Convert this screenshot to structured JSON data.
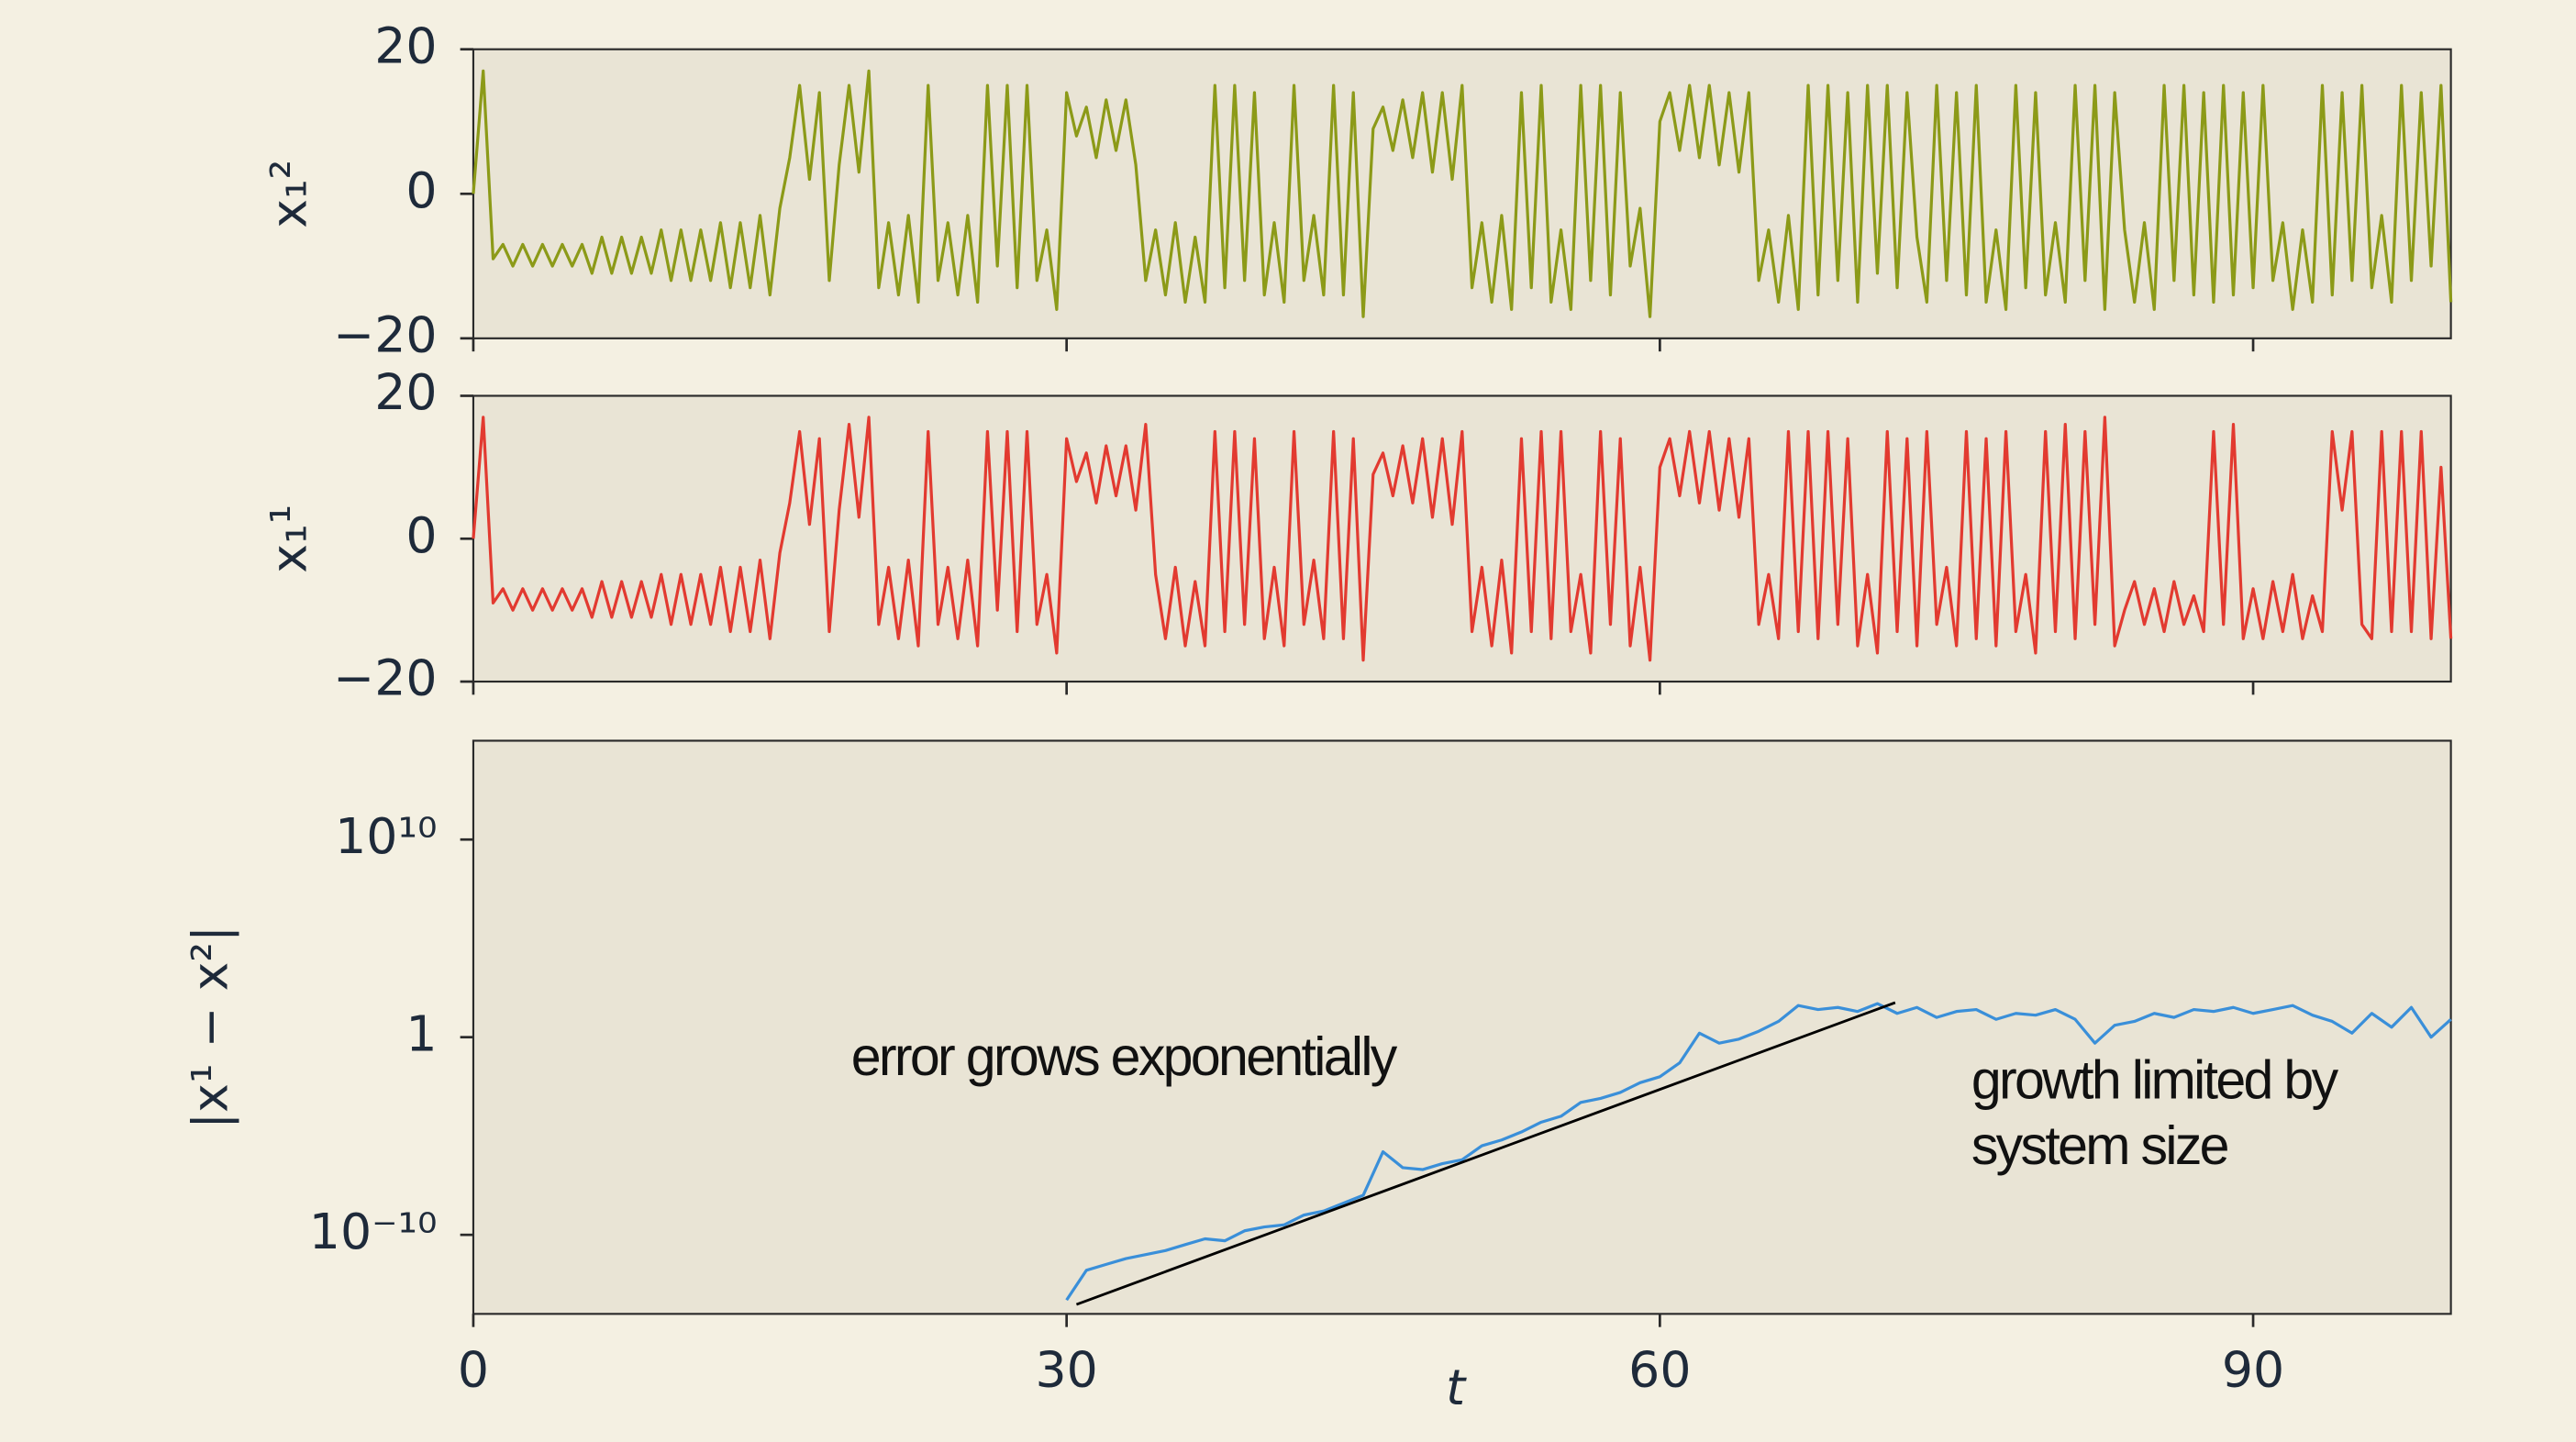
{
  "chart_data": [
    {
      "type": "line",
      "ylabel": "x₁²",
      "xlim": [
        0,
        100
      ],
      "xticks": [
        0,
        30,
        60,
        90
      ],
      "xticklabels": false,
      "ylim": [
        -20,
        20
      ],
      "yticks": [
        {
          "value": -20,
          "label": "−20"
        },
        0,
        20
      ],
      "series": [
        {
          "color": "#8c9a18",
          "x": [
            0,
            0.5,
            1,
            1.5,
            2,
            2.5,
            3,
            3.5,
            4,
            4.5,
            5,
            5.5,
            6,
            6.5,
            7,
            7.5,
            8,
            8.5,
            9,
            9.5,
            10,
            10.5,
            11,
            11.5,
            12,
            12.5,
            13,
            13.5,
            14,
            14.5,
            15,
            15.5,
            16,
            16.5,
            17,
            17.5,
            18,
            18.5,
            19,
            19.5,
            20,
            20.5,
            21,
            21.5,
            22,
            22.5,
            23,
            23.5,
            24,
            24.5,
            25,
            25.5,
            26,
            26.5,
            27,
            27.5,
            28,
            28.5,
            29,
            29.5,
            30,
            30.5,
            31,
            31.5,
            32,
            32.5,
            33,
            33.5,
            34,
            34.5,
            35,
            35.5,
            36,
            36.5,
            37,
            37.5,
            38,
            38.5,
            39,
            39.5,
            40,
            40.5,
            41,
            41.5,
            42,
            42.5,
            43,
            43.5,
            44,
            44.5,
            45,
            45.5,
            46,
            46.5,
            47,
            47.5,
            48,
            48.5,
            49,
            49.5,
            50,
            50.5,
            51,
            51.5,
            52,
            52.5,
            53,
            53.5,
            54,
            54.5,
            55,
            55.5,
            56,
            56.5,
            57,
            57.5,
            58,
            58.5,
            59,
            59.5,
            60,
            60.5,
            61,
            61.5,
            62,
            62.5,
            63,
            63.5,
            64,
            64.5,
            65,
            65.5,
            66,
            66.5,
            67,
            67.5,
            68,
            68.5,
            69,
            69.5,
            70,
            70.5,
            71,
            71.5,
            72,
            72.5,
            73,
            73.5,
            74,
            74.5,
            75,
            75.5,
            76,
            76.5,
            77,
            77.5,
            78,
            78.5,
            79,
            79.5,
            80,
            80.5,
            81,
            81.5,
            82,
            82.5,
            83,
            83.5,
            84,
            84.5,
            85,
            85.5,
            86,
            86.5,
            87,
            87.5,
            88,
            88.5,
            89,
            89.5,
            90,
            90.5,
            91,
            91.5,
            92,
            92.5,
            93,
            93.5,
            94,
            94.5,
            95,
            95.5,
            96,
            96.5,
            97,
            97.5,
            98,
            98.5,
            99,
            99.5,
            100
          ],
          "values": [
            0,
            17,
            -9,
            -7,
            -10,
            -7,
            -10,
            -7,
            -10,
            -7,
            -10,
            -7,
            -11,
            -6,
            -11,
            -6,
            -11,
            -6,
            -11,
            -5,
            -12,
            -5,
            -12,
            -5,
            -12,
            -4,
            -13,
            -4,
            -13,
            -3,
            -14,
            -2,
            5,
            15,
            2,
            14,
            -12,
            4,
            15,
            3,
            17,
            -13,
            -4,
            -14,
            -3,
            -15,
            15,
            -12,
            -4,
            -14,
            -3,
            -15,
            15,
            -10,
            15,
            -13,
            15,
            -12,
            -5,
            -16,
            14,
            8,
            12,
            5,
            13,
            6,
            13,
            4,
            -12,
            -5,
            -14,
            -4,
            -15,
            -6,
            -15,
            15,
            -13,
            15,
            -12,
            14,
            -14,
            -4,
            -15,
            15,
            -12,
            -3,
            -14,
            15,
            -14,
            14,
            -17,
            9,
            12,
            6,
            13,
            5,
            14,
            3,
            14,
            2,
            15,
            -13,
            -4,
            -15,
            -3,
            -16,
            14,
            -13,
            15,
            -15,
            -5,
            -16,
            15,
            -12,
            15,
            -14,
            14,
            -10,
            -2,
            -17,
            10,
            14,
            6,
            15,
            5,
            15,
            4,
            14,
            3,
            14,
            -12,
            -5,
            -15,
            -3,
            -16,
            15,
            -14,
            15,
            -12,
            14,
            -15,
            15,
            -11,
            15,
            -13,
            14,
            -6,
            -15,
            15,
            -12,
            14,
            -14,
            15,
            -15,
            -5,
            -16,
            15,
            -13,
            14,
            -14,
            -4,
            -15,
            15,
            -12,
            15,
            -16,
            14,
            -5,
            -15,
            -4,
            -16,
            15,
            -12,
            15,
            -14,
            14,
            -15,
            15,
            -14,
            14,
            -13,
            15,
            -12,
            -4,
            -16,
            -5,
            -15,
            15,
            -14,
            14,
            -12,
            15,
            -13,
            -3,
            -15,
            15,
            -12,
            14,
            -10,
            15,
            -15
          ]
        }
      ]
    },
    {
      "type": "line",
      "ylabel": "x₁¹",
      "xlim": [
        0,
        100
      ],
      "xticks": [
        0,
        30,
        60,
        90
      ],
      "xticklabels": false,
      "ylim": [
        -20,
        20
      ],
      "yticks": [
        {
          "value": -20,
          "label": "−20"
        },
        0,
        20
      ],
      "series": [
        {
          "color": "#e23a30",
          "x": [
            0,
            0.5,
            1,
            1.5,
            2,
            2.5,
            3,
            3.5,
            4,
            4.5,
            5,
            5.5,
            6,
            6.5,
            7,
            7.5,
            8,
            8.5,
            9,
            9.5,
            10,
            10.5,
            11,
            11.5,
            12,
            12.5,
            13,
            13.5,
            14,
            14.5,
            15,
            15.5,
            16,
            16.5,
            17,
            17.5,
            18,
            18.5,
            19,
            19.5,
            20,
            20.5,
            21,
            21.5,
            22,
            22.5,
            23,
            23.5,
            24,
            24.5,
            25,
            25.5,
            26,
            26.5,
            27,
            27.5,
            28,
            28.5,
            29,
            29.5,
            30,
            30.5,
            31,
            31.5,
            32,
            32.5,
            33,
            33.5,
            34,
            34.5,
            35,
            35.5,
            36,
            36.5,
            37,
            37.5,
            38,
            38.5,
            39,
            39.5,
            40,
            40.5,
            41,
            41.5,
            42,
            42.5,
            43,
            43.5,
            44,
            44.5,
            45,
            45.5,
            46,
            46.5,
            47,
            47.5,
            48,
            48.5,
            49,
            49.5,
            50,
            50.5,
            51,
            51.5,
            52,
            52.5,
            53,
            53.5,
            54,
            54.5,
            55,
            55.5,
            56,
            56.5,
            57,
            57.5,
            58,
            58.5,
            59,
            59.5,
            60,
            60.5,
            61,
            61.5,
            62,
            62.5,
            63,
            63.5,
            64,
            64.5,
            65,
            65.5,
            66,
            66.5,
            67,
            67.5,
            68,
            68.5,
            69,
            69.5,
            70,
            70.5,
            71,
            71.5,
            72,
            72.5,
            73,
            73.5,
            74,
            74.5,
            75,
            75.5,
            76,
            76.5,
            77,
            77.5,
            78,
            78.5,
            79,
            79.5,
            80,
            80.5,
            81,
            81.5,
            82,
            82.5,
            83,
            83.5,
            84,
            84.5,
            85,
            85.5,
            86,
            86.5,
            87,
            87.5,
            88,
            88.5,
            89,
            89.5,
            90,
            90.5,
            91,
            91.5,
            92,
            92.5,
            93,
            93.5,
            94,
            94.5,
            95,
            95.5,
            96,
            96.5,
            97,
            97.5,
            98,
            98.5,
            99,
            99.5,
            100
          ],
          "values": [
            0,
            17,
            -9,
            -7,
            -10,
            -7,
            -10,
            -7,
            -10,
            -7,
            -10,
            -7,
            -11,
            -6,
            -11,
            -6,
            -11,
            -6,
            -11,
            -5,
            -12,
            -5,
            -12,
            -5,
            -12,
            -4,
            -13,
            -4,
            -13,
            -3,
            -14,
            -2,
            5,
            15,
            2,
            14,
            -13,
            4,
            16,
            3,
            17,
            -12,
            -4,
            -14,
            -3,
            -15,
            15,
            -12,
            -4,
            -14,
            -3,
            -15,
            15,
            -10,
            15,
            -13,
            15,
            -12,
            -5,
            -16,
            14,
            8,
            12,
            5,
            13,
            6,
            13,
            4,
            16,
            -5,
            -14,
            -4,
            -15,
            -6,
            -15,
            15,
            -13,
            15,
            -12,
            14,
            -14,
            -4,
            -15,
            15,
            -12,
            -3,
            -14,
            15,
            -14,
            14,
            -17,
            9,
            12,
            6,
            13,
            5,
            14,
            3,
            14,
            2,
            15,
            -13,
            -4,
            -15,
            -3,
            -16,
            14,
            -13,
            15,
            -14,
            15,
            -13,
            -5,
            -16,
            15,
            -12,
            14,
            -15,
            -4,
            -17,
            10,
            14,
            6,
            15,
            5,
            15,
            4,
            14,
            3,
            14,
            -12,
            -5,
            -14,
            15,
            -13,
            15,
            -14,
            15,
            -12,
            14,
            -15,
            -5,
            -16,
            15,
            -13,
            14,
            -15,
            15,
            -12,
            -4,
            -15,
            15,
            -14,
            14,
            -15,
            15,
            -13,
            -5,
            -16,
            15,
            -13,
            16,
            -14,
            15,
            -12,
            17,
            -15,
            -10,
            -6,
            -12,
            -7,
            -13,
            -6,
            -12,
            -8,
            -13,
            15,
            -12,
            16,
            -14,
            -7,
            -14,
            -6,
            -13,
            -5,
            -14,
            -8,
            -13,
            15,
            4,
            15,
            -12,
            -14,
            15,
            -13,
            15,
            -13,
            15,
            -14,
            10,
            -14
          ]
        }
      ]
    },
    {
      "type": "line",
      "ylabel": "|x¹ − x²|",
      "xlabel": "t",
      "yscale": "log",
      "xlim": [
        0,
        100
      ],
      "xticks": [
        0,
        30,
        60,
        90
      ],
      "ylim": [
        1e-14,
        1000000000000000.0
      ],
      "yticks": [
        {
          "value": 1e-10,
          "label": "10⁻¹⁰"
        },
        1,
        {
          "value": 10000000000,
          "label": "10¹⁰"
        }
      ],
      "series": [
        {
          "color": "#3a8fd9",
          "x": [
            30,
            31,
            32,
            33,
            34,
            35,
            36,
            37,
            38,
            39,
            40,
            41,
            42,
            43,
            44,
            45,
            46,
            47,
            48,
            49,
            50,
            51,
            52,
            53,
            54,
            55,
            56,
            57,
            58,
            59,
            60,
            61,
            62,
            63,
            64,
            65,
            66,
            67,
            68,
            69,
            70,
            71,
            72,
            73,
            74,
            75,
            76,
            77,
            78,
            79,
            80,
            81,
            82,
            83,
            84,
            85,
            86,
            87,
            88,
            89,
            90,
            91,
            92,
            93,
            94,
            95,
            96,
            97,
            98,
            99,
            100
          ],
          "values": [
            5e-14,
            1.6e-12,
            3.2e-12,
            6.3e-12,
            1e-11,
            1.6e-11,
            3.2e-11,
            6.3e-11,
            5e-11,
            1.6e-10,
            2.5e-10,
            3.2e-10,
            1e-09,
            1.6e-09,
            4e-09,
            1e-08,
            1.6e-06,
            2.5e-07,
            2e-07,
            4e-07,
            6.3e-07,
            3.2e-06,
            6.3e-06,
            1.6e-05,
            5e-05,
            0.0001,
            0.0005,
            0.0008,
            0.0016,
            0.005,
            0.01,
            0.05,
            1.6,
            0.5,
            0.8,
            2,
            6.3,
            40,
            25,
            32,
            20,
            50,
            16,
            32,
            10,
            20,
            25,
            8,
            16,
            13,
            25,
            8,
            0.5,
            4,
            6.3,
            16,
            10,
            25,
            20,
            32,
            16,
            25,
            40,
            13,
            6.3,
            1.6,
            16,
            3.2,
            32,
            1,
            8
          ]
        }
      ],
      "fit": {
        "color": "#000000",
        "x": [
          30.5,
          71.9
        ],
        "values": [
          3e-14,
          56
        ]
      },
      "annotations": [
        "error grows exponentially",
        "growth limited by",
        "system size"
      ]
    }
  ]
}
